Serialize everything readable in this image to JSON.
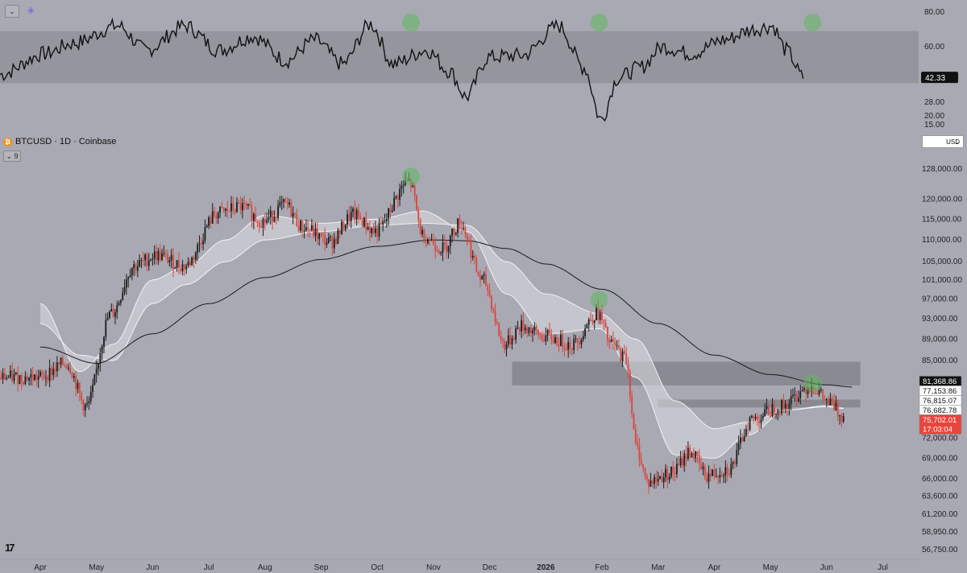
{
  "symbol": {
    "title": "BTCUSD · 1D · Coinbase",
    "coin_icon": "bitcoin-icon",
    "collapse_label": "9"
  },
  "currency": {
    "label": "USD"
  },
  "rsi_axis": {
    "ticks": [
      80,
      60,
      42.33,
      28,
      20,
      15
    ],
    "tick_labels": [
      "80.00",
      "60.00",
      "42.33",
      "28.00",
      "20.00",
      "15.00"
    ],
    "current": "42.33",
    "band": [
      39,
      69
    ],
    "range": [
      15,
      80
    ]
  },
  "price_axis": {
    "ticks": [
      128000,
      120000,
      115000,
      110000,
      105000,
      101000,
      97000,
      93000,
      89000,
      85000,
      72000,
      69000,
      66000,
      63600,
      61200,
      58950,
      56750
    ],
    "tick_labels": [
      "128,000.00",
      "120,000.00",
      "115,000.00",
      "110,000.00",
      "105,000.00",
      "101,000.00",
      "97,000.00",
      "93,000.00",
      "89,000.00",
      "85,000.00",
      "72,000.00",
      "69,000.00",
      "66,000.00",
      "63,600.00",
      "61,200.00",
      "58,950.00",
      "56,750.00"
    ],
    "range": [
      56750,
      128000
    ],
    "scale": "log"
  },
  "price_labels": [
    {
      "value": 81368.86,
      "text": "81,368.86",
      "bg": "#111111",
      "fg": "#ffffff"
    },
    {
      "value": 77153.86,
      "text": "77,153.86",
      "bg": "#ffffff",
      "fg": "#111111"
    },
    {
      "value": 76815.07,
      "text": "76,815.07",
      "bg": "#ffffff",
      "fg": "#111111"
    },
    {
      "value": 76682.78,
      "text": "76,682.78",
      "bg": "#ffffff",
      "fg": "#111111"
    },
    {
      "value": 75702.01,
      "text": "75,702.01",
      "sub": "17:03:04",
      "bg": "#e8453c",
      "fg": "#ffffff"
    }
  ],
  "x_axis": {
    "labels": [
      "Apr",
      "May",
      "Jun",
      "Jul",
      "Aug",
      "Sep",
      "Oct",
      "Nov",
      "Dec",
      "2026",
      "Feb",
      "Mar",
      "Apr",
      "May",
      "Jun",
      "Jul"
    ],
    "bold": [
      "2026"
    ]
  },
  "zones": [
    {
      "from_month": 8.4,
      "to_month": 14.6,
      "low": 80600,
      "high": 84800
    },
    {
      "from_month": 11.0,
      "to_month": 14.6,
      "low": 76900,
      "high": 78200
    }
  ],
  "highlight_circles": [
    {
      "month": 6.6,
      "pane": "rsi",
      "value": 74
    },
    {
      "month": 9.95,
      "pane": "rsi",
      "value": 74
    },
    {
      "month": 13.75,
      "pane": "rsi",
      "value": 74
    },
    {
      "month": 6.6,
      "pane": "price",
      "value": 126000
    },
    {
      "month": 9.95,
      "pane": "price",
      "value": 96800
    },
    {
      "month": 13.75,
      "pane": "price",
      "value": 81000
    }
  ],
  "colors": {
    "background": "#a9a9b3",
    "up": "#1c1c1c",
    "down": "#d9463c",
    "ma_long": "#1a1a1a",
    "ma_ribbon": "#f2f2f2",
    "zone": "#85858d",
    "circle": "#5fb85f",
    "rsi_band": "#95959d"
  },
  "chart_data": {
    "type": "candlestick",
    "title": "BTCUSD · 1D · Coinbase",
    "xlabel": "",
    "ylabel": "",
    "x_labels": [
      "Apr",
      "May",
      "Jun",
      "Jul",
      "Aug",
      "Sep",
      "Oct",
      "Nov",
      "Dec",
      "2026",
      "Feb",
      "Mar",
      "Apr",
      "May",
      "Jun",
      "Jul"
    ],
    "ylim": [
      56750,
      128000
    ],
    "price_anchors": [
      {
        "month": 0.0,
        "price": 82000
      },
      {
        "month": 0.5,
        "price": 84500
      },
      {
        "month": 0.85,
        "price": 77000
      },
      {
        "month": 1.3,
        "price": 94000
      },
      {
        "month": 1.7,
        "price": 104000
      },
      {
        "month": 2.1,
        "price": 106500
      },
      {
        "month": 2.6,
        "price": 104000
      },
      {
        "month": 3.2,
        "price": 116500
      },
      {
        "month": 3.6,
        "price": 118000
      },
      {
        "month": 4.0,
        "price": 114500
      },
      {
        "month": 4.4,
        "price": 118500
      },
      {
        "month": 4.7,
        "price": 113000
      },
      {
        "month": 5.2,
        "price": 109500
      },
      {
        "month": 5.6,
        "price": 116000
      },
      {
        "month": 6.0,
        "price": 112000
      },
      {
        "month": 6.6,
        "price": 124500
      },
      {
        "month": 6.85,
        "price": 111000
      },
      {
        "month": 7.2,
        "price": 108000
      },
      {
        "month": 7.5,
        "price": 114000
      },
      {
        "month": 7.9,
        "price": 101000
      },
      {
        "month": 8.3,
        "price": 88000
      },
      {
        "month": 8.6,
        "price": 91500
      },
      {
        "month": 9.0,
        "price": 89500
      },
      {
        "month": 9.5,
        "price": 88000
      },
      {
        "month": 9.95,
        "price": 94000
      },
      {
        "month": 10.2,
        "price": 88000
      },
      {
        "month": 10.45,
        "price": 85500
      },
      {
        "month": 10.65,
        "price": 70500
      },
      {
        "month": 10.85,
        "price": 65500
      },
      {
        "month": 11.3,
        "price": 67000
      },
      {
        "month": 11.6,
        "price": 70000
      },
      {
        "month": 11.9,
        "price": 66500
      },
      {
        "month": 12.3,
        "price": 67500
      },
      {
        "month": 12.7,
        "price": 75000
      },
      {
        "month": 13.2,
        "price": 77000
      },
      {
        "month": 13.75,
        "price": 80500
      },
      {
        "month": 14.1,
        "price": 77500
      },
      {
        "month": 14.3,
        "price": 75700
      }
    ],
    "rsi_anchors": [
      {
        "month": 0.0,
        "value": 44
      },
      {
        "month": 0.8,
        "value": 56
      },
      {
        "month": 1.3,
        "value": 62
      },
      {
        "month": 2.1,
        "value": 72
      },
      {
        "month": 2.6,
        "value": 58
      },
      {
        "month": 3.3,
        "value": 72
      },
      {
        "month": 3.9,
        "value": 58
      },
      {
        "month": 4.5,
        "value": 66
      },
      {
        "month": 5.1,
        "value": 52
      },
      {
        "month": 5.6,
        "value": 64
      },
      {
        "month": 6.1,
        "value": 50
      },
      {
        "month": 6.6,
        "value": 73
      },
      {
        "month": 7.0,
        "value": 50
      },
      {
        "month": 7.6,
        "value": 58
      },
      {
        "month": 8.0,
        "value": 46
      },
      {
        "month": 8.3,
        "value": 31
      },
      {
        "month": 8.7,
        "value": 54
      },
      {
        "month": 9.3,
        "value": 55
      },
      {
        "month": 9.95,
        "value": 72
      },
      {
        "month": 10.4,
        "value": 48
      },
      {
        "month": 10.7,
        "value": 18
      },
      {
        "month": 11.0,
        "value": 42
      },
      {
        "month": 11.4,
        "value": 48
      },
      {
        "month": 11.8,
        "value": 60
      },
      {
        "month": 12.3,
        "value": 56
      },
      {
        "month": 12.9,
        "value": 64
      },
      {
        "month": 13.4,
        "value": 70
      },
      {
        "month": 13.75,
        "value": 72
      },
      {
        "month": 14.0,
        "value": 58
      },
      {
        "month": 14.3,
        "value": 42.33
      }
    ],
    "ma_long_anchors": [
      {
        "month": 0.0,
        "price": 87500
      },
      {
        "month": 1.0,
        "price": 84500
      },
      {
        "month": 2.0,
        "price": 90000
      },
      {
        "month": 3.0,
        "price": 96000
      },
      {
        "month": 4.0,
        "price": 101500
      },
      {
        "month": 5.0,
        "price": 105500
      },
      {
        "month": 6.0,
        "price": 108500
      },
      {
        "month": 7.0,
        "price": 110000
      },
      {
        "month": 7.6,
        "price": 109800
      },
      {
        "month": 8.3,
        "price": 108000
      },
      {
        "month": 9.0,
        "price": 104500
      },
      {
        "month": 10.0,
        "price": 99000
      },
      {
        "month": 11.0,
        "price": 92000
      },
      {
        "month": 12.0,
        "price": 86000
      },
      {
        "month": 13.0,
        "price": 82500
      },
      {
        "month": 14.0,
        "price": 80700
      },
      {
        "month": 14.5,
        "price": 80300
      }
    ],
    "ma_ribbon_anchors": [
      {
        "month": 0.0,
        "fast": 96000,
        "slow": 92000
      },
      {
        "month": 0.7,
        "fast": 83000,
        "slow": 86000
      },
      {
        "month": 1.3,
        "fast": 88000,
        "slow": 85000
      },
      {
        "month": 2.0,
        "fast": 101000,
        "slow": 96000
      },
      {
        "month": 2.6,
        "fast": 104000,
        "slow": 100000
      },
      {
        "month": 3.3,
        "fast": 110000,
        "slow": 105000
      },
      {
        "month": 4.0,
        "fast": 116000,
        "slow": 110000
      },
      {
        "month": 5.0,
        "fast": 114000,
        "slow": 112000
      },
      {
        "month": 6.0,
        "fast": 115000,
        "slow": 113500
      },
      {
        "month": 6.8,
        "fast": 117000,
        "slow": 114000
      },
      {
        "month": 7.6,
        "fast": 112000,
        "slow": 113500
      },
      {
        "month": 8.3,
        "fast": 98000,
        "slow": 105000
      },
      {
        "month": 9.0,
        "fast": 90000,
        "slow": 98000
      },
      {
        "month": 9.95,
        "fast": 91000,
        "slow": 94000
      },
      {
        "month": 10.6,
        "fast": 82000,
        "slow": 89000
      },
      {
        "month": 11.3,
        "fast": 69500,
        "slow": 78000
      },
      {
        "month": 12.0,
        "fast": 69000,
        "slow": 73500
      },
      {
        "month": 12.6,
        "fast": 72500,
        "slow": 74500
      },
      {
        "month": 13.3,
        "fast": 76500,
        "slow": 76500
      },
      {
        "month": 14.0,
        "fast": 77200,
        "slow": 77000
      },
      {
        "month": 14.3,
        "fast": 76700,
        "slow": 76800
      }
    ]
  }
}
